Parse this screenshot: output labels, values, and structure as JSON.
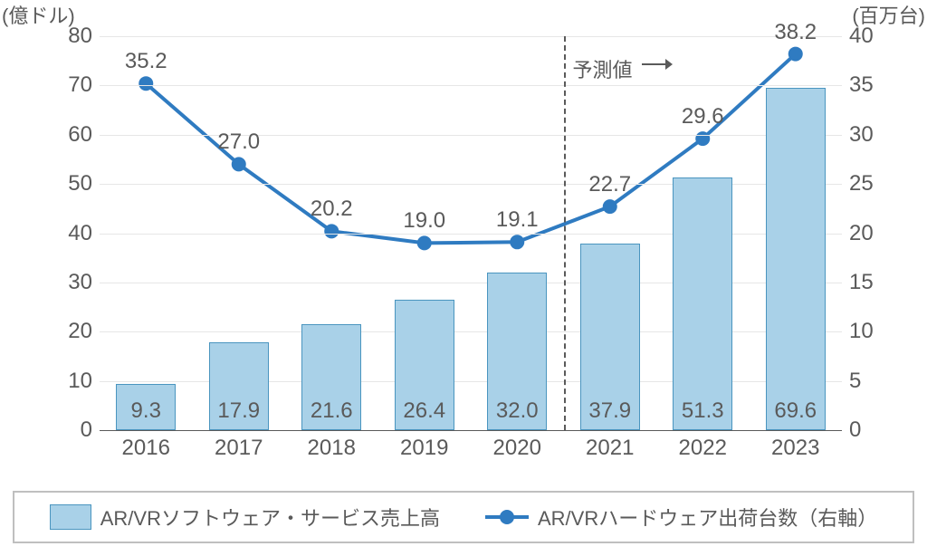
{
  "chart": {
    "type": "bar+line",
    "background_color": "#ffffff",
    "grid_color": "#e6e6e6",
    "axis_text_color": "#5a5a5a",
    "axis_font_size_pt": 18,
    "left_axis": {
      "title": "(億ドル)",
      "min": 0,
      "max": 80,
      "step": 10
    },
    "right_axis": {
      "title": "(百万台)",
      "min": 0,
      "max": 40,
      "step": 5
    },
    "categories": [
      "2016",
      "2017",
      "2018",
      "2019",
      "2020",
      "2021",
      "2022",
      "2023"
    ],
    "bar_series": {
      "name": "AR/VRソフトウェア・サービス売上高",
      "axis": "left",
      "color_fill": "#a9d1e8",
      "color_border": "#4a95bf",
      "values": [
        9.3,
        17.9,
        21.6,
        26.4,
        32.0,
        37.9,
        51.3,
        69.6
      ],
      "labels": [
        "9.3",
        "17.9",
        "21.6",
        "26.4",
        "32.0",
        "37.9",
        "51.3",
        "69.6"
      ],
      "bar_width_ratio": 0.64,
      "label_font_size_pt": 18,
      "label_color": "#5a5a5a"
    },
    "line_series": {
      "name": "AR/VRハードウェア出荷台数（右軸）",
      "axis": "right",
      "color": "#2f7bc1",
      "line_width": 4,
      "marker_radius": 8,
      "values": [
        35.2,
        27.0,
        20.2,
        19.0,
        19.1,
        22.7,
        29.6,
        38.2
      ],
      "labels": [
        "35.2",
        "27.0",
        "20.2",
        "19.0",
        "19.1",
        "22.7",
        "29.6",
        "38.2"
      ],
      "label_font_size_pt": 18,
      "label_color": "#5a5a5a"
    },
    "forecast": {
      "label": "予測値",
      "after_category_index": 4,
      "line_color": "#5a5a5a",
      "line_dash": "6,6"
    },
    "legend": {
      "items": [
        {
          "kind": "bar",
          "label": "AR/VRソフトウェア・サービス売上高"
        },
        {
          "kind": "line",
          "label": "AR/VRハードウェア出荷台数（右軸）"
        }
      ],
      "border_color": "#bfbfbf",
      "font_size_pt": 16,
      "text_color": "#5a5a5a"
    }
  }
}
